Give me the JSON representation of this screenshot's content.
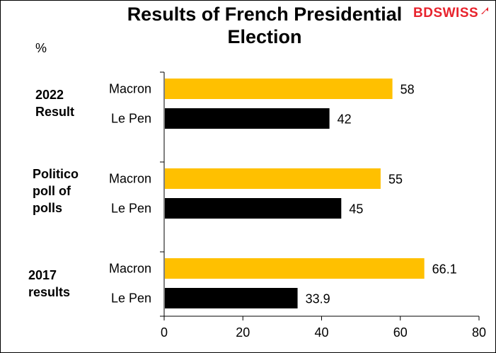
{
  "header": {
    "title": "Results of French Presidential Election",
    "unit": "%",
    "logo_text": "BDSWISS"
  },
  "colors": {
    "macron": "#ffc000",
    "le_pen": "#000000",
    "brand_red": "#e8232d"
  },
  "chart_data": {
    "type": "bar",
    "orientation": "horizontal",
    "title": "Results of French Presidential Election",
    "xlabel": "",
    "ylabel": "%",
    "xlim": [
      0,
      80
    ],
    "xticks": [
      0,
      20,
      40,
      60,
      80
    ],
    "grid": false,
    "legend": "none",
    "groups": [
      {
        "label": "2022 Result",
        "bars": [
          {
            "name": "Macron",
            "value": 58,
            "label": "58"
          },
          {
            "name": "Le Pen",
            "value": 42,
            "label": "42"
          }
        ]
      },
      {
        "label": "Politico poll of polls",
        "bars": [
          {
            "name": "Macron",
            "value": 55,
            "label": "55"
          },
          {
            "name": "Le Pen",
            "value": 45,
            "label": "45"
          }
        ]
      },
      {
        "label": "2017 results",
        "bars": [
          {
            "name": "Macron",
            "value": 66.1,
            "label": "66.1"
          },
          {
            "name": "Le Pen",
            "value": 33.9,
            "label": "33.9"
          }
        ]
      }
    ]
  },
  "group_labels": [
    [
      "2022",
      "Result"
    ],
    [
      "Politico",
      "poll of",
      "polls"
    ],
    [
      "2017",
      "results"
    ]
  ]
}
